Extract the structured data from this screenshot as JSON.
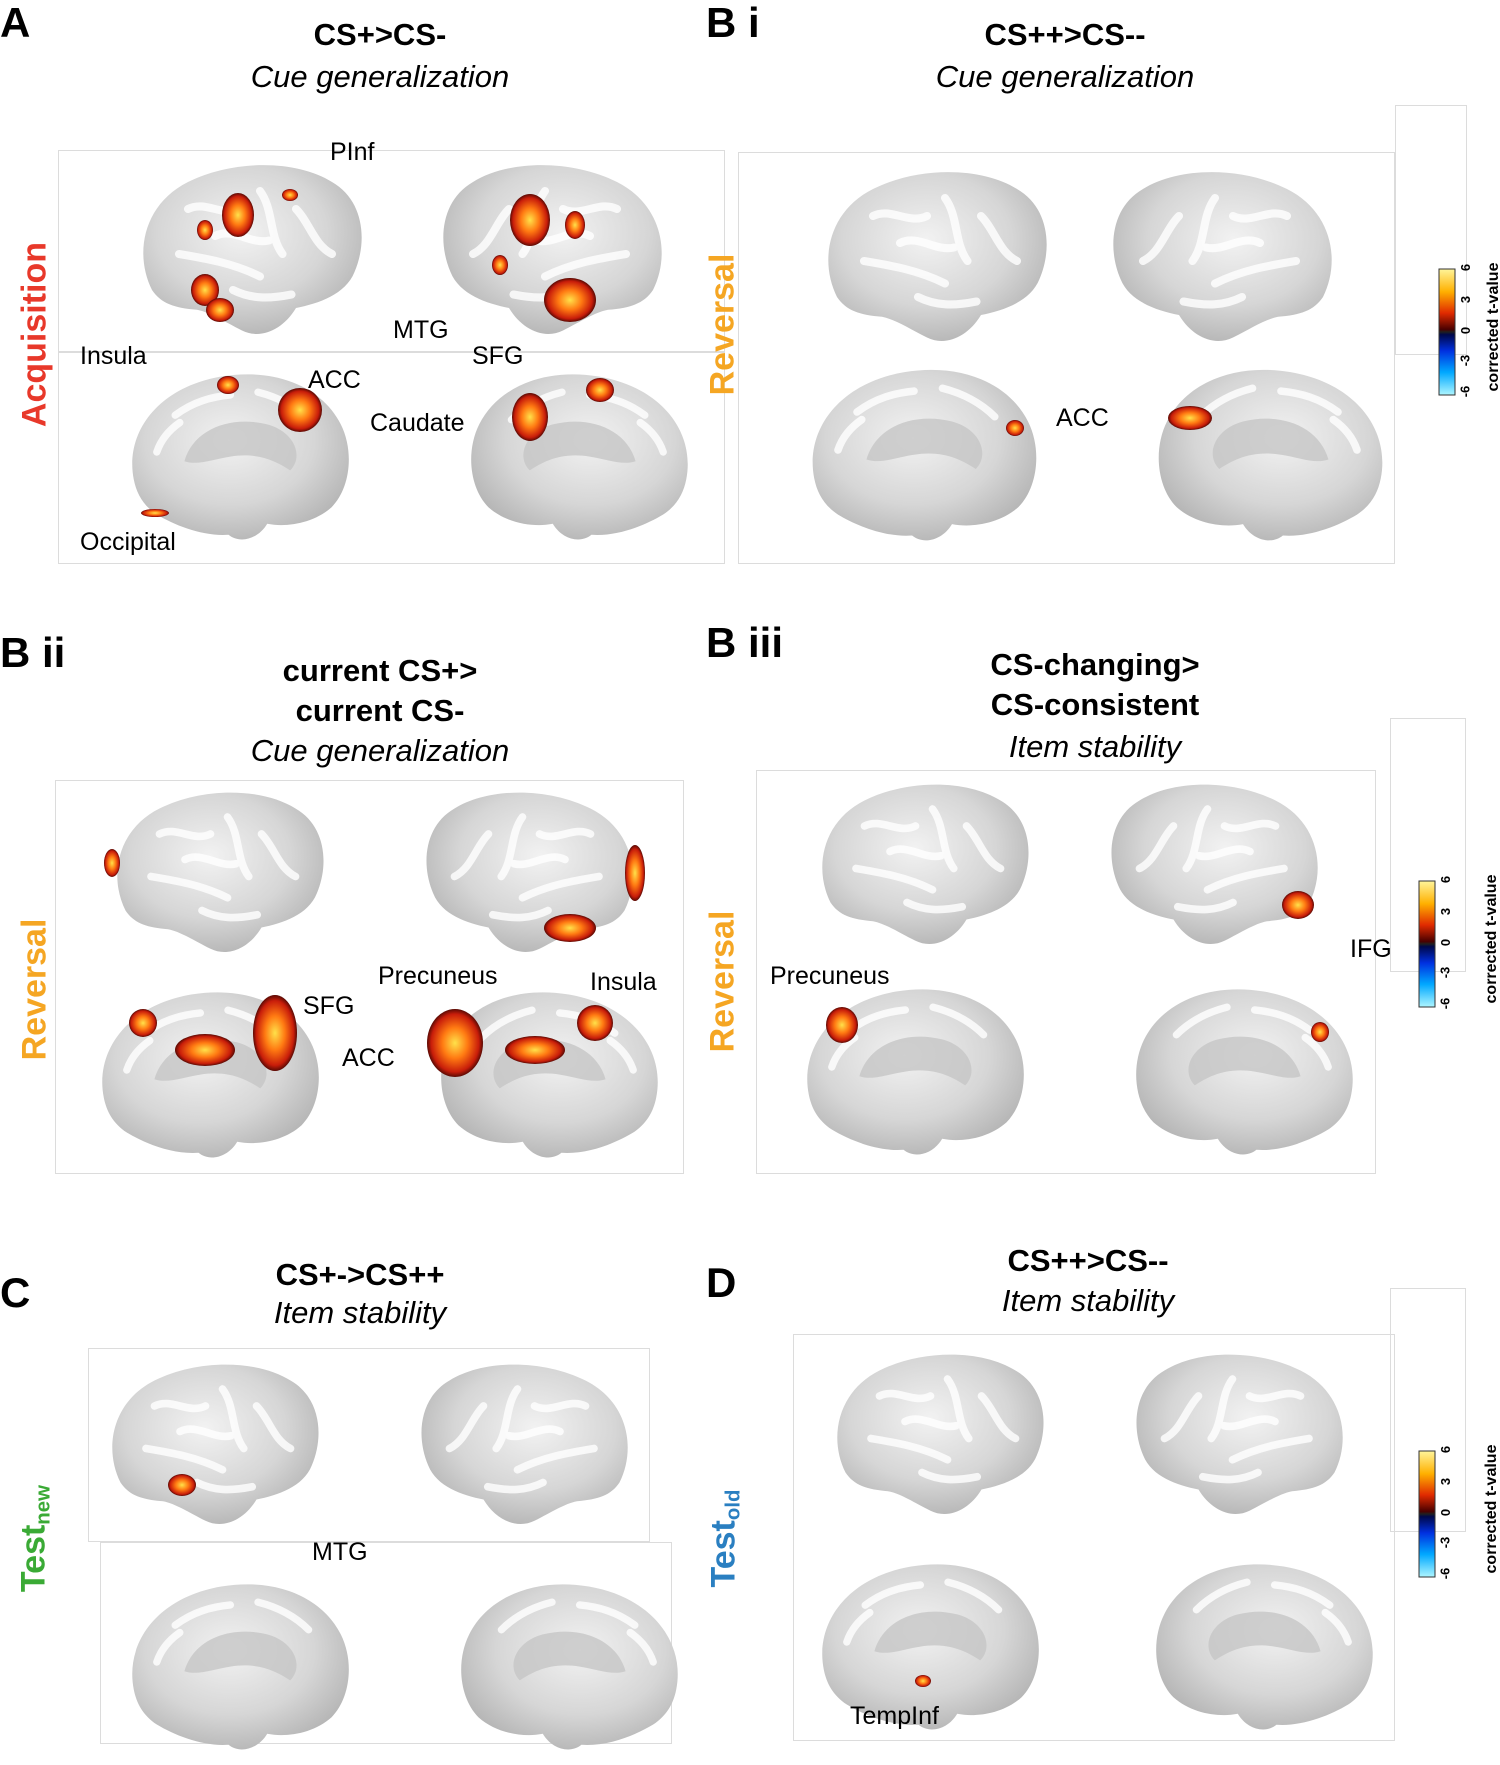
{
  "panels": {
    "A": {
      "letter": "A",
      "title": "CS+>CS-",
      "subtitle": "Cue generalization",
      "phase": "Acquisition",
      "phase_color": "#e8382a",
      "regions": [
        "PInf",
        "Insula",
        "MTG",
        "SFG",
        "ACC",
        "Caudate",
        "Occipital"
      ]
    },
    "Bi": {
      "letter": "B i",
      "title": "CS++>CS--",
      "subtitle": "Cue generalization",
      "phase": "Reversal",
      "phase_color": "#f5a623",
      "regions": [
        "ACC"
      ]
    },
    "Bii": {
      "letter": "B ii",
      "title_line1": "current CS+>",
      "title_line2": "current CS-",
      "subtitle": "Cue generalization",
      "phase": "Reversal",
      "phase_color": "#f5a623",
      "regions": [
        "SFG",
        "Precuneus",
        "Insula",
        "ACC"
      ]
    },
    "Biii": {
      "letter": "B iii",
      "title_line1": "CS-changing>",
      "title_line2": "CS-consistent",
      "subtitle": "Item stability",
      "phase": "Reversal",
      "phase_color": "#f5a623",
      "regions": [
        "IFG",
        "Precuneus"
      ]
    },
    "C": {
      "letter": "C",
      "title": "CS+->CS++",
      "subtitle": "Item stability",
      "phase_main": "Test",
      "phase_sub": "new",
      "phase_color": "#3aaa35",
      "regions": [
        "MTG"
      ]
    },
    "D": {
      "letter": "D",
      "title": "CS++>CS--",
      "subtitle": "Item stability",
      "phase_main": "Test",
      "phase_sub": "old",
      "phase_color": "#2a7fc1",
      "regions": [
        "TempInf"
      ]
    }
  },
  "colorbar": {
    "label": "corrected t-value",
    "ticks": [
      "6",
      "3",
      "0",
      "-3",
      "-6"
    ]
  }
}
